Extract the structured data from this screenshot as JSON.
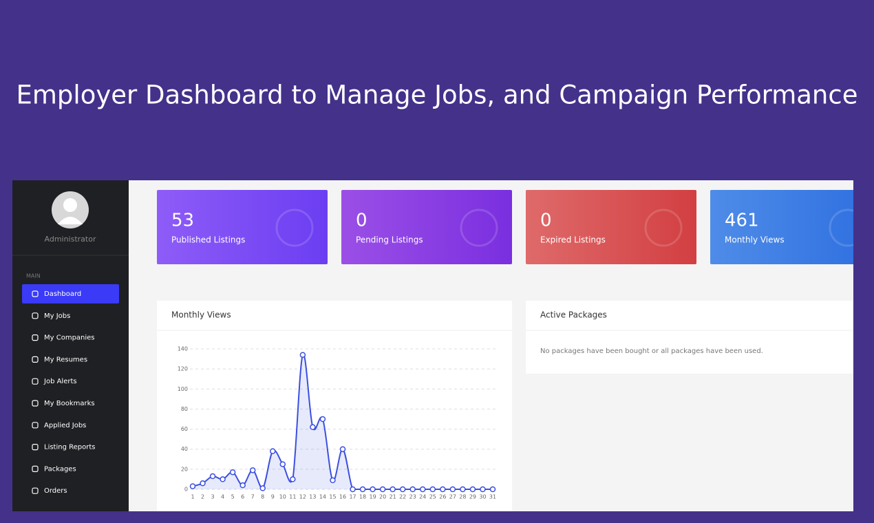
{
  "headline": "Employer Dashboard to Manage Jobs, and Campaign Performance",
  "sidebar": {
    "user": "Administrator",
    "section": "MAIN",
    "items": [
      "Dashboard",
      "My Jobs",
      "My Companies",
      "My Resumes",
      "Job Alerts",
      "My Bookmarks",
      "Applied Jobs",
      "Listing Reports",
      "Packages",
      "Orders"
    ]
  },
  "cards": [
    {
      "value": 53,
      "label": "Published Listings"
    },
    {
      "value": 0,
      "label": "Pending Listings"
    },
    {
      "value": 0,
      "label": "Expired Listings"
    },
    {
      "value": 461,
      "label": "Monthly Views"
    }
  ],
  "panels": {
    "monthly_views": {
      "title": "Monthly Views"
    },
    "active_packages": {
      "title": "Active Packages",
      "message": "No packages have been bought or all packages have been used."
    }
  },
  "chart_data": {
    "type": "line",
    "categories": [
      "1",
      "2",
      "3",
      "4",
      "5",
      "6",
      "7",
      "8",
      "9",
      "10",
      "11",
      "12",
      "13",
      "14",
      "15",
      "16",
      "17",
      "18",
      "19",
      "20",
      "21",
      "22",
      "23",
      "24",
      "25",
      "26",
      "27",
      "28",
      "29",
      "30",
      "31"
    ],
    "values": [
      3,
      6,
      13,
      10,
      17,
      4,
      19,
      1,
      38,
      25,
      10,
      134,
      62,
      70,
      9,
      40,
      0,
      0,
      0,
      0,
      0,
      0,
      0,
      0,
      0,
      0,
      0,
      0,
      0,
      0,
      0
    ],
    "color": "#3b4fe0",
    "ylim": [
      0,
      140
    ],
    "yticks": [
      0,
      20,
      40,
      60,
      80,
      100,
      120,
      140
    ],
    "grid": true
  }
}
